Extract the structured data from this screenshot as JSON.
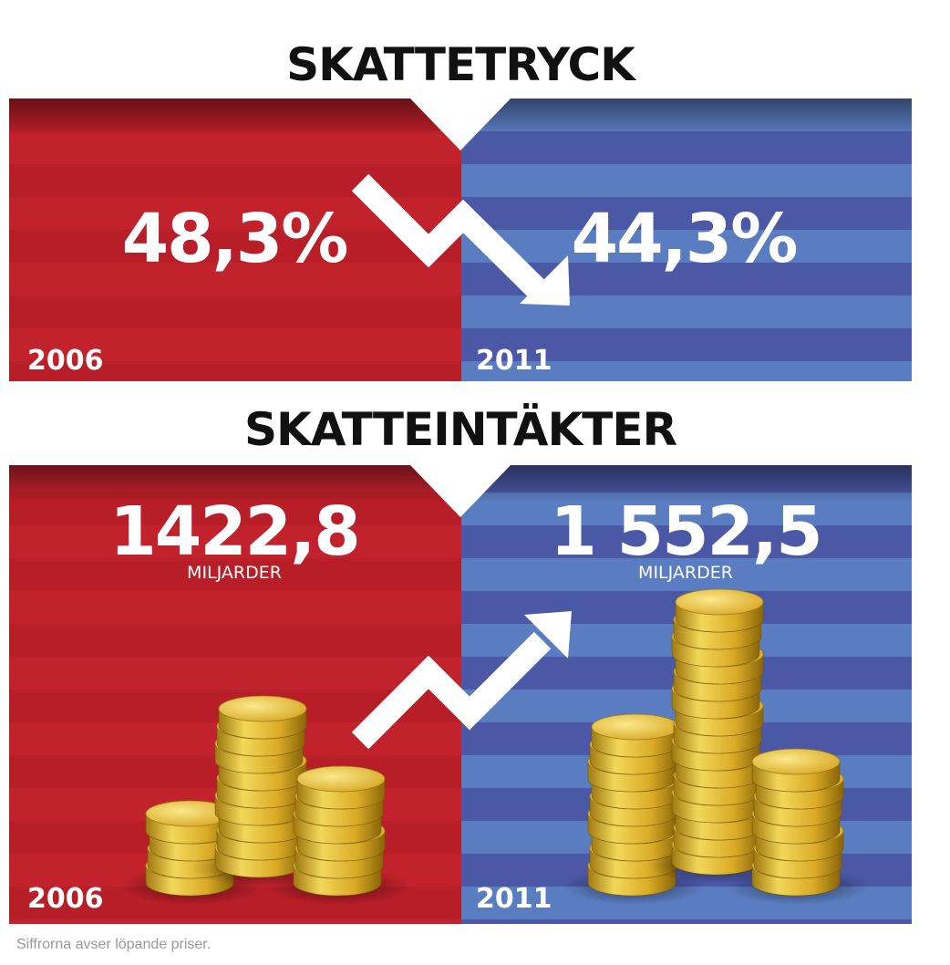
{
  "sections": [
    {
      "title": "SKATTETRYCK",
      "left": {
        "value": "48,3%",
        "year": "2006"
      },
      "right": {
        "value": "44,3%",
        "year": "2011"
      }
    },
    {
      "title": "SKATTEINTÄKTER",
      "left": {
        "value": "1422,8",
        "unit": "MILJARDER",
        "year": "2006"
      },
      "right": {
        "value": "1 552,5",
        "unit": "MILJARDER",
        "year": "2011"
      }
    }
  ],
  "footnote": "Siffrorna avser löpande priser."
}
